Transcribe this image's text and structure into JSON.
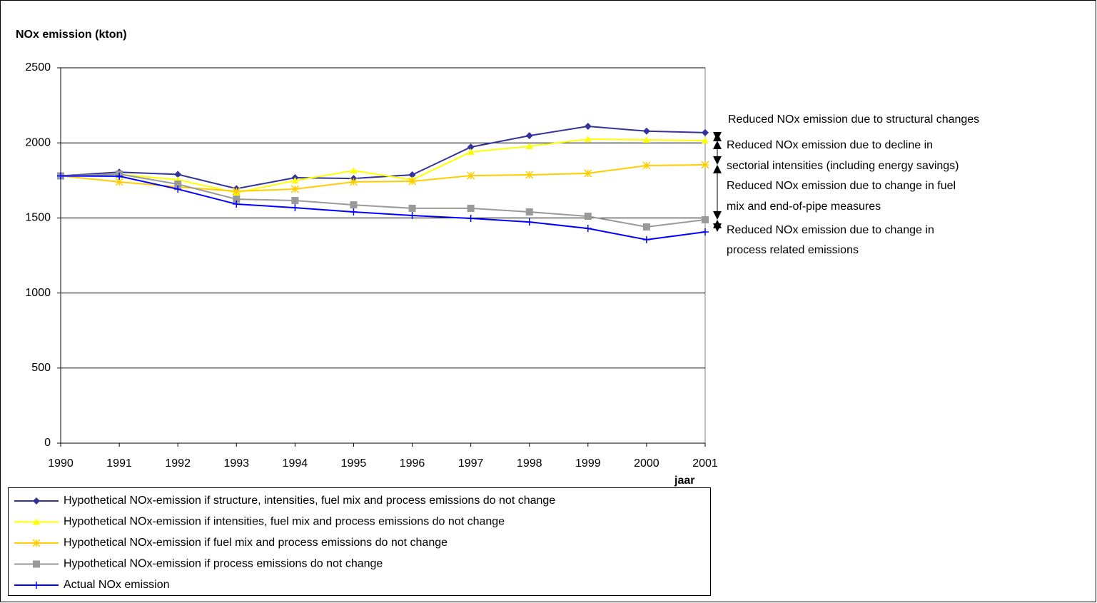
{
  "chart_data": {
    "type": "line",
    "title": "NOx emission (kton)",
    "x_label": "jaar",
    "categories": [
      "1990",
      "1991",
      "1992",
      "1993",
      "1994",
      "1995",
      "1996",
      "1997",
      "1998",
      "1999",
      "2000",
      "2001"
    ],
    "ylim": [
      0,
      2500
    ],
    "yticks": [
      0,
      500,
      1000,
      1500,
      2000,
      2500
    ],
    "grid": true,
    "series": [
      {
        "name": "Hypothetical NOx-emission if structure, intensities, fuel mix and process emissions do not change",
        "color": "#333399",
        "marker": "diamond",
        "values": [
          1780,
          1805,
          1790,
          1695,
          1768,
          1763,
          1787,
          1972,
          2048,
          2110,
          2078,
          2068
        ]
      },
      {
        "name": "Hypothetical NOx-emission if intensities, fuel mix and process emissions do not change",
        "color": "#ffff00",
        "marker": "triangle",
        "values": [
          1780,
          1790,
          1754,
          1668,
          1749,
          1815,
          1754,
          1939,
          1977,
          2025,
          2020,
          2015
        ]
      },
      {
        "name": "Hypothetical NOx-emission if fuel mix and process emissions do not change",
        "color": "#ffcc00",
        "marker": "asterisk",
        "values": [
          1780,
          1740,
          1706,
          1678,
          1692,
          1740,
          1744,
          1782,
          1787,
          1797,
          1849,
          1854
        ]
      },
      {
        "name": "Hypothetical NOx-emission if process emissions do not change",
        "color": "#999999",
        "marker": "square",
        "values": [
          1780,
          1792,
          1725,
          1625,
          1616,
          1587,
          1564,
          1564,
          1540,
          1511,
          1440,
          1488
        ]
      },
      {
        "name": "Actual NOx emission",
        "color": "#0000ff",
        "marker": "plus",
        "values": [
          1780,
          1778,
          1692,
          1592,
          1568,
          1540,
          1516,
          1497,
          1473,
          1430,
          1355,
          1407
        ]
      }
    ],
    "annotations": [
      {
        "lines": [
          "Reduced NOx emission due to structural changes"
        ]
      },
      {
        "lines": [
          "Reduced NOx emission due to decline in",
          "sectorial intensities (including energy savings)"
        ]
      },
      {
        "lines": [
          "Reduced NOx emission due to change in fuel",
          "mix and end-of-pipe measures"
        ]
      },
      {
        "lines": [
          "Reduced NOx emission due to change in",
          "process related emissions"
        ]
      }
    ]
  }
}
